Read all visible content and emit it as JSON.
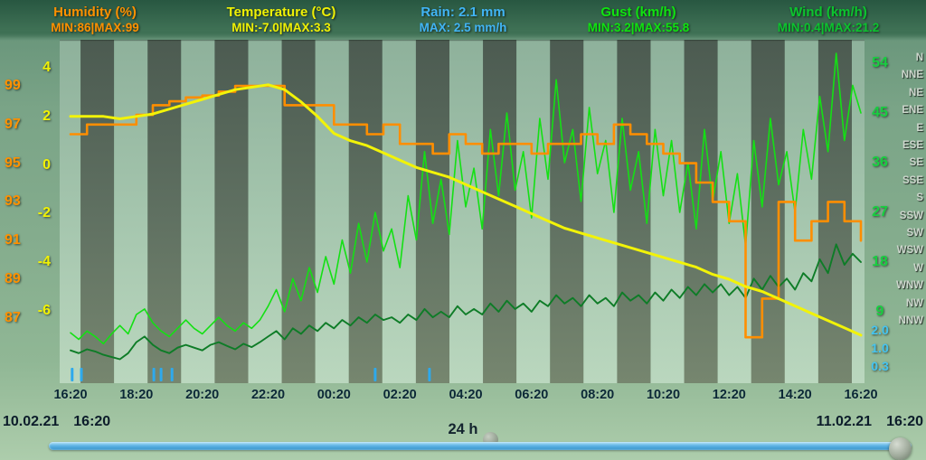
{
  "header": {
    "humidity": {
      "title": "Humidity (%)",
      "minmax": "MIN:86|MAX:99"
    },
    "temperature": {
      "title": "Temperature (°C)",
      "minmax": "MIN:-7.0|MAX:3.3"
    },
    "rain": {
      "title": "Rain: 2.1 mm",
      "minmax": "MAX: 2.5 mm/h"
    },
    "gust": {
      "title": "Gust (km/h)",
      "minmax": "MIN:3.2|MAX:55.8"
    },
    "wind": {
      "title": "Wind (km/h)",
      "minmax": "MIN:0.4|MAX:21.2"
    }
  },
  "footer": {
    "start_date": "10.02.21",
    "start_time": "16:20",
    "span_label": "24 h",
    "end_date": "11.02.21",
    "end_time": "16:20"
  },
  "colors": {
    "humidity": "#ff9100",
    "temperature": "#f0f105",
    "rain": "#41b4f4",
    "gust": "#10e310",
    "wind_header": "#0cc42e",
    "wind_line": "#0e7c27",
    "scrollbar": "#4aa4d8"
  },
  "chart_data": {
    "type": "line",
    "title": "24-hour weather history (10.02.21 16:20 - 11.02.21 16:20)",
    "x_unit": "hours since 10.02.21 16:20",
    "x_range_hours": [
      0,
      24
    ],
    "x_ticks": [
      "16:20",
      "18:20",
      "20:20",
      "22:20",
      "00:20",
      "02:20",
      "04:20",
      "06:20",
      "08:20",
      "10:20",
      "12:20",
      "14:20",
      "16:20"
    ],
    "axes": {
      "temperature": {
        "unit": "°C",
        "ticks": [
          4,
          2,
          0,
          -2,
          -4,
          -6
        ]
      },
      "humidity": {
        "unit": "%",
        "ticks": [
          99,
          97,
          95,
          93,
          91,
          89,
          87
        ]
      },
      "wind": {
        "unit": "km/h",
        "ticks": [
          54,
          45,
          36,
          27,
          18,
          9
        ]
      },
      "rain": {
        "unit": "mm/h",
        "ticks": [
          "2.0",
          "1.0",
          "0.3"
        ]
      },
      "directions": [
        "N",
        "NNE",
        "NE",
        "ENE",
        "E",
        "ESE",
        "SE",
        "SSE",
        "S",
        "SSW",
        "SW",
        "WSW",
        "W",
        "WNW",
        "NW",
        "NNW"
      ]
    },
    "stats": {
      "humidity": {
        "min": 86,
        "max": 99
      },
      "temperature": {
        "min": -7.0,
        "max": 3.3
      },
      "rain": {
        "total_mm": 2.1,
        "max_mm_h": 2.5
      },
      "gust": {
        "min": 3.2,
        "max": 55.8
      },
      "wind": {
        "min": 0.4,
        "max": 21.2
      }
    },
    "series": [
      {
        "id": "gust",
        "name": "Gust (km/h)",
        "scale": "wind",
        "color": "#14e014",
        "width": 1.6,
        "step": false,
        "x_start_h": 0,
        "x_step_h": 0.25,
        "values": [
          5.2,
          4,
          5.5,
          4.5,
          3.2,
          5,
          6.5,
          5,
          8.5,
          9.5,
          7,
          5.5,
          4.5,
          6,
          7.5,
          6,
          5,
          6.5,
          8,
          6.5,
          5.5,
          7,
          6,
          7.5,
          10,
          13,
          9,
          15,
          11,
          17,
          12.5,
          19,
          14,
          22,
          16,
          25,
          18,
          27,
          20,
          24,
          17,
          30,
          22,
          38,
          25,
          33,
          23,
          40,
          28,
          35,
          24,
          42,
          30,
          45,
          31,
          38,
          26,
          44,
          33,
          51,
          36,
          42,
          29,
          46,
          34,
          40,
          27,
          44,
          31,
          38,
          25,
          42,
          30,
          40,
          27,
          36,
          24,
          42,
          29,
          38,
          25,
          34,
          21,
          40,
          28,
          44,
          32,
          38,
          27,
          42,
          33,
          48,
          38,
          55.8,
          40,
          50,
          45
        ]
      },
      {
        "id": "wind",
        "name": "Wind (km/h)",
        "scale": "wind",
        "color": "#0e7c27",
        "width": 1.9,
        "step": false,
        "x_start_h": 0,
        "x_step_h": 0.25,
        "values": [
          2,
          1.5,
          2.2,
          1.8,
          1.2,
          0.8,
          0.4,
          1.5,
          3.5,
          4.5,
          3,
          2,
          1.5,
          2.5,
          3,
          2.5,
          2,
          3,
          3.5,
          2.8,
          2.2,
          3.2,
          2.6,
          3.5,
          4.5,
          5.5,
          4,
          6,
          5,
          6.5,
          5.5,
          7,
          6,
          7.5,
          6.5,
          8,
          7,
          8.5,
          7.5,
          8,
          7,
          8.5,
          7.5,
          9.5,
          8,
          9,
          8,
          10,
          8.5,
          9.5,
          8.5,
          10.5,
          9,
          11,
          9.5,
          10.5,
          9,
          11,
          10,
          12,
          10.5,
          11.5,
          10,
          12,
          10.5,
          11.5,
          10,
          12.5,
          11,
          12,
          10.5,
          12.5,
          11,
          13,
          11.5,
          13.5,
          12,
          14,
          12.5,
          14,
          12,
          13.5,
          11.5,
          15,
          13,
          15.5,
          13.5,
          15,
          13,
          16,
          14.5,
          18.5,
          16,
          21.2,
          17.5,
          19.5,
          18
        ]
      },
      {
        "id": "humidity",
        "name": "Humidity (%)",
        "scale": "humidity",
        "color": "#ff8e00",
        "width": 2.6,
        "step": true,
        "x_start_h": 0,
        "x_step_h": 0.5,
        "values": [
          96.5,
          97,
          97,
          97,
          97.5,
          98,
          98.2,
          98.4,
          98.5,
          98.7,
          99,
          99,
          99,
          98,
          98,
          98,
          97,
          97,
          96.5,
          97,
          96,
          96,
          95.5,
          96.5,
          96,
          95.5,
          96,
          96,
          95.5,
          96,
          96,
          96.5,
          96,
          97,
          96.5,
          96,
          95.5,
          95,
          94,
          93,
          92,
          86,
          88,
          93,
          91,
          92,
          93,
          92,
          91
        ]
      },
      {
        "id": "temperature",
        "name": "Temperature (°C)",
        "scale": "temperature",
        "color": "#f2f308",
        "width": 3,
        "step": false,
        "x_start_h": 0,
        "x_step_h": 0.5,
        "values": [
          2,
          2,
          2,
          1.9,
          2,
          2.1,
          2.3,
          2.5,
          2.7,
          2.9,
          3.1,
          3.2,
          3.3,
          3.1,
          2.6,
          2,
          1.3,
          1,
          0.8,
          0.5,
          0.2,
          -0.1,
          -0.3,
          -0.5,
          -0.8,
          -1.1,
          -1.4,
          -1.7,
          -2,
          -2.3,
          -2.6,
          -2.8,
          -3,
          -3.2,
          -3.4,
          -3.6,
          -3.8,
          -4,
          -4.2,
          -4.5,
          -4.7,
          -5,
          -5.2,
          -5.5,
          -5.8,
          -6.1,
          -6.4,
          -6.7,
          -7
        ]
      }
    ],
    "rain_events_h": [
      0.05,
      0.33,
      2.53,
      2.75,
      3.08,
      9.25,
      10.9
    ],
    "rain_tick_color": "#2ea9ec",
    "legend_position": "top",
    "grid": "vertical hour stripes"
  }
}
